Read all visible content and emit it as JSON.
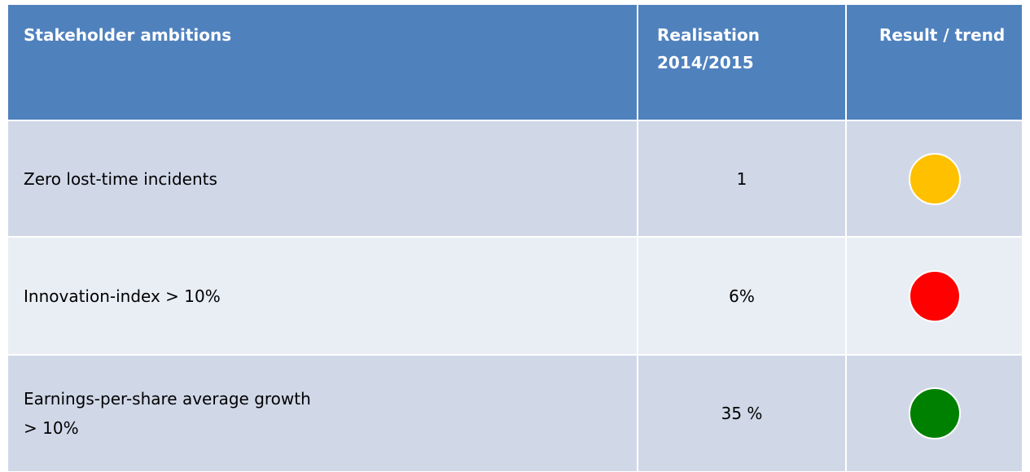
{
  "table": {
    "header": [
      "Stakeholder ambitions",
      "Realisation\n2014/2015",
      "Result / trend"
    ],
    "rows": [
      {
        "ambition": "Zero lost-time incidents",
        "realisation": "1",
        "status_color": "#ffc000"
      },
      {
        "ambition": "Innovation-index > 10%",
        "realisation": "6%",
        "status_color": "#ff0000"
      },
      {
        "ambition": "Earnings-per-share average growth\n> 10%",
        "realisation": "35 %",
        "status_color": "#008000"
      }
    ]
  }
}
